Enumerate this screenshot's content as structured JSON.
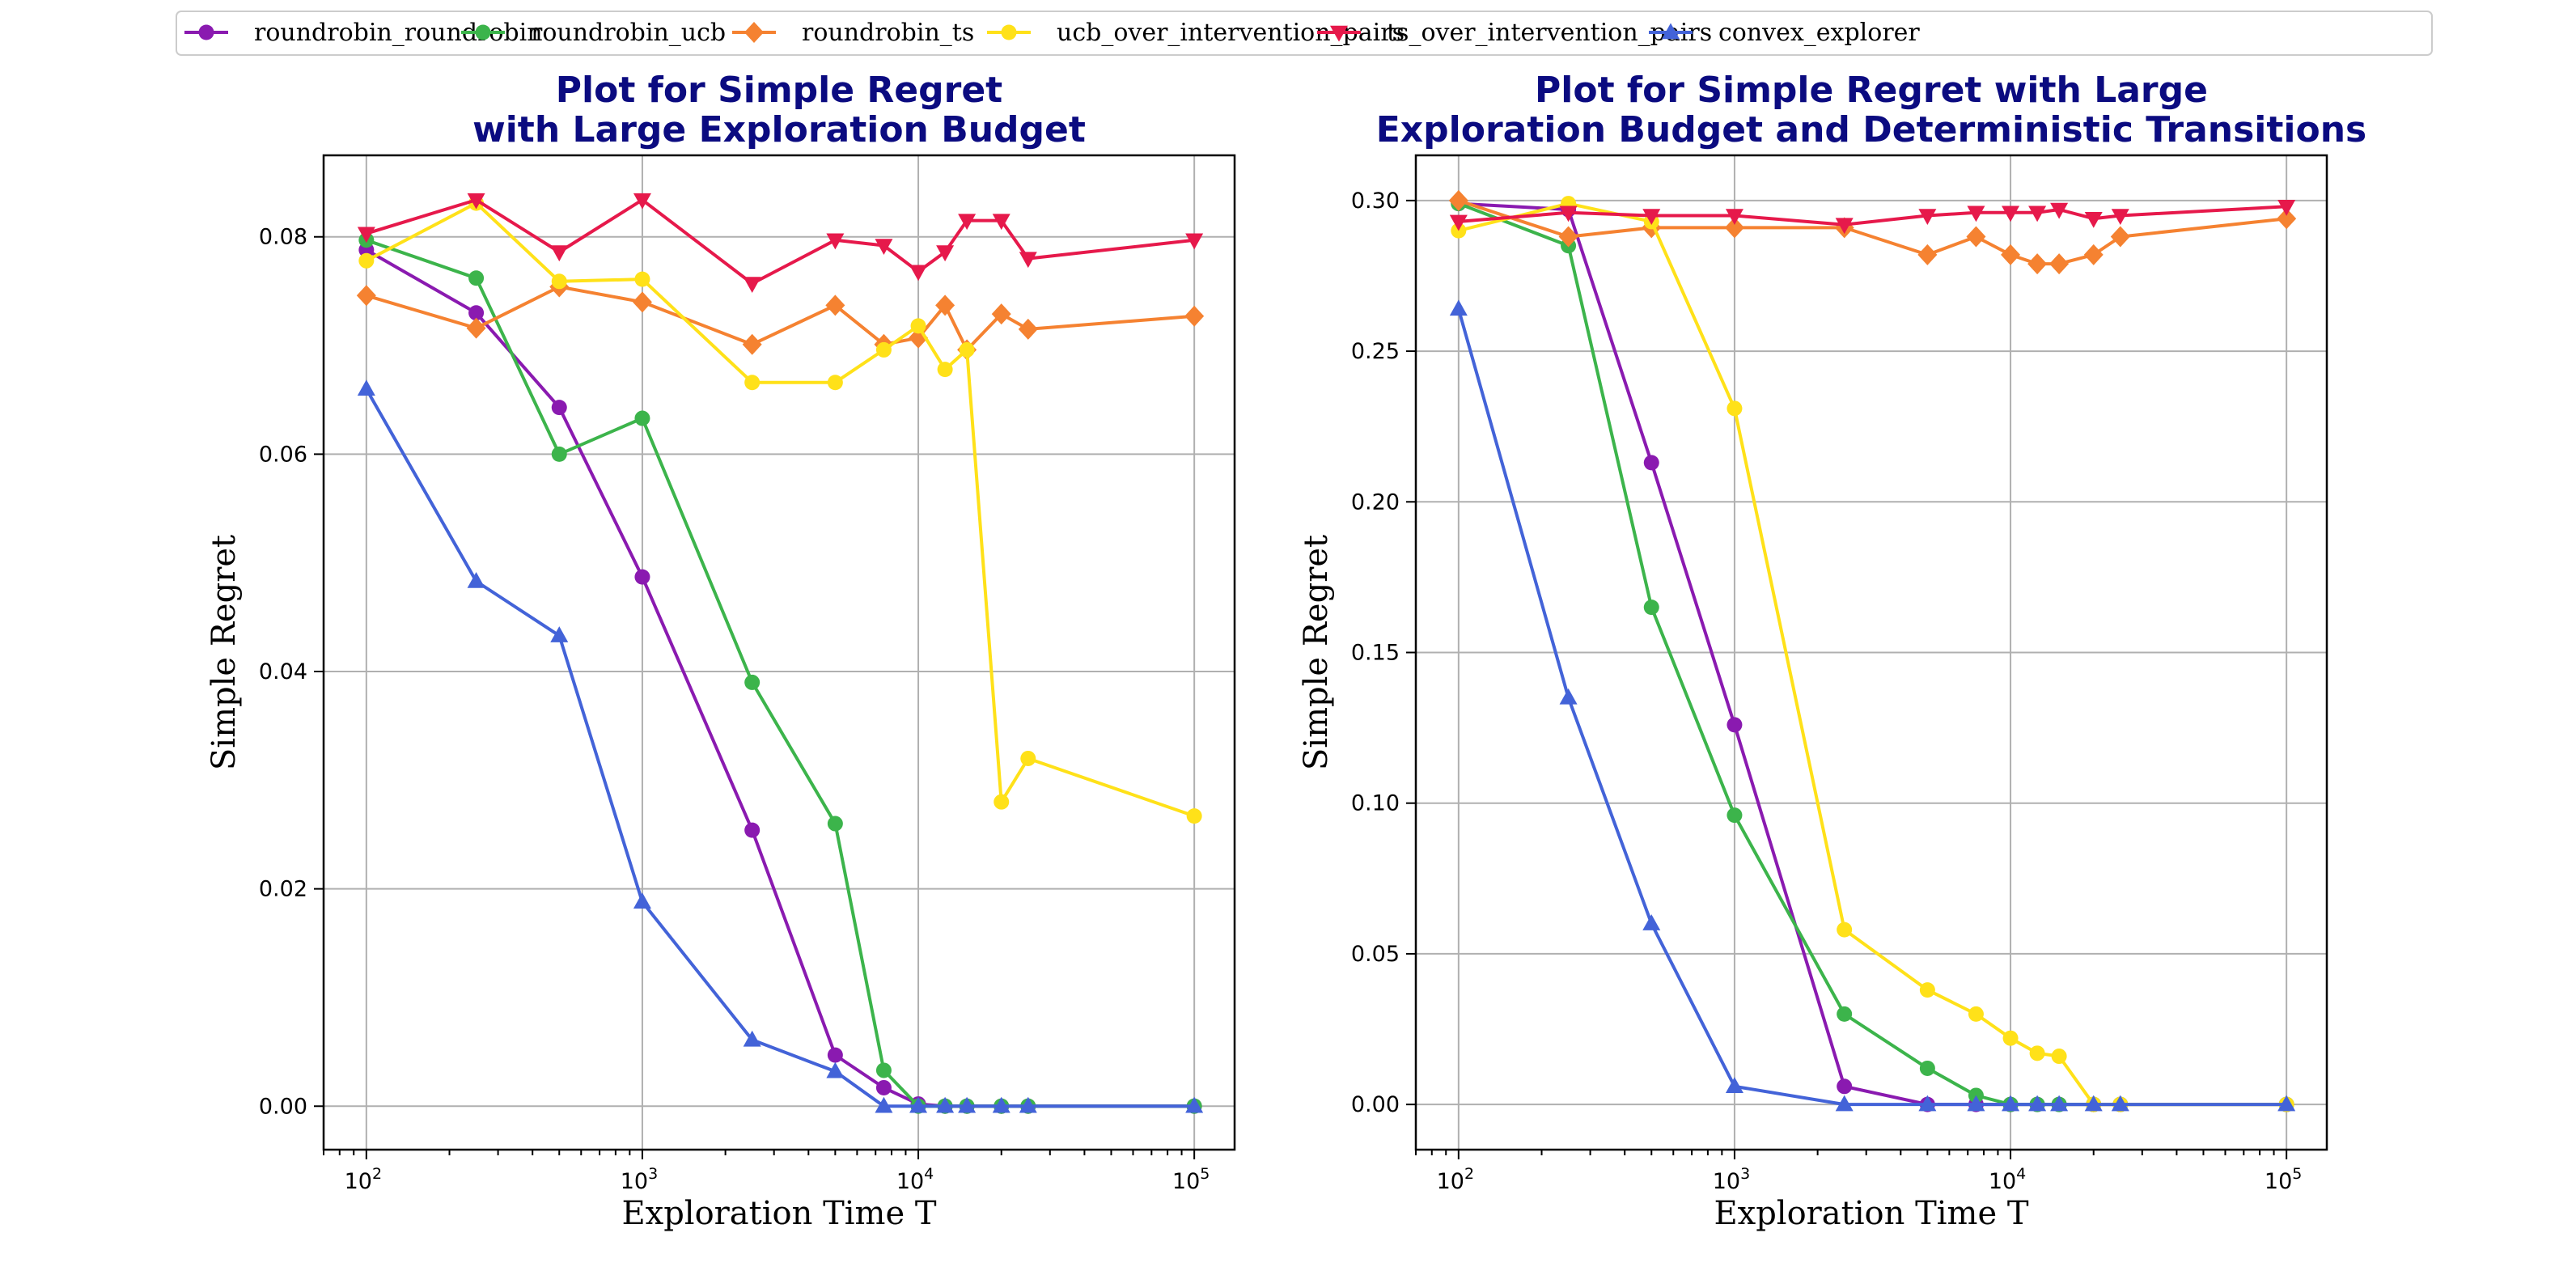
{
  "legend": [
    {
      "name": "roundrobin_roundrobin",
      "color": "#8a1ab0",
      "marker": "circle"
    },
    {
      "name": "roundrobin_ucb",
      "color": "#3cb44b",
      "marker": "circle"
    },
    {
      "name": "roundrobin_ts",
      "color": "#f58231",
      "marker": "diamond"
    },
    {
      "name": "ucb_over_intervention_pairs",
      "color": "#ffe119",
      "marker": "circle"
    },
    {
      "name": "ts_over_intervention_pairs",
      "color": "#e6194b",
      "marker": "triangle-down"
    },
    {
      "name": "convex_explorer",
      "color": "#4363d8",
      "marker": "triangle-up"
    }
  ],
  "chart_data": [
    {
      "type": "line",
      "title_lines": [
        "Plot for Simple Regret",
        "with Large Exploration Budget"
      ],
      "xlabel": "Exploration Time T",
      "ylabel": "Simple Regret",
      "xscale": "log",
      "xlim": [
        70,
        140000
      ],
      "ylim": [
        -0.004,
        0.0875
      ],
      "xticks": [
        {
          "base": "10",
          "exp": "2",
          "value": 100
        },
        {
          "base": "10",
          "exp": "3",
          "value": 1000
        },
        {
          "base": "10",
          "exp": "4",
          "value": 10000
        },
        {
          "base": "10",
          "exp": "5",
          "value": 100000
        }
      ],
      "yticks": [
        {
          "label": "0.00",
          "value": 0
        },
        {
          "label": "0.02",
          "value": 0.02
        },
        {
          "label": "0.04",
          "value": 0.04
        },
        {
          "label": "0.06",
          "value": 0.06
        },
        {
          "label": "0.08",
          "value": 0.08
        }
      ],
      "grid": true,
      "series": [
        {
          "name": "roundrobin_roundrobin",
          "x": [
            100,
            250,
            500,
            1000,
            2500,
            5000,
            7500,
            10000,
            12500,
            15000,
            20000,
            25000,
            100000
          ],
          "y": [
            0.0788,
            0.073,
            0.0643,
            0.0487,
            0.0254,
            0.0047,
            0.0017,
            0.0002,
            0.0,
            0.0,
            0.0,
            0.0,
            0.0
          ]
        },
        {
          "name": "roundrobin_ucb",
          "x": [
            100,
            250,
            500,
            1000,
            2500,
            5000,
            7500,
            10000,
            12500,
            15000,
            20000,
            25000,
            100000
          ],
          "y": [
            0.0797,
            0.0762,
            0.06,
            0.0633,
            0.039,
            0.026,
            0.0033,
            0.0,
            0.0,
            0.0,
            0.0,
            0.0,
            0.0
          ]
        },
        {
          "name": "roundrobin_ts",
          "x": [
            100,
            250,
            500,
            1000,
            2500,
            5000,
            7500,
            10000,
            12500,
            15000,
            20000,
            25000,
            100000
          ],
          "y": [
            0.0746,
            0.0716,
            0.0754,
            0.074,
            0.0701,
            0.0737,
            0.0701,
            0.0707,
            0.0737,
            0.0696,
            0.0729,
            0.0715,
            0.0727
          ]
        },
        {
          "name": "ucb_over_intervention_pairs",
          "x": [
            100,
            250,
            500,
            1000,
            2500,
            5000,
            7500,
            10000,
            12500,
            15000,
            20000,
            25000,
            100000
          ],
          "y": [
            0.0778,
            0.0831,
            0.0759,
            0.0761,
            0.0666,
            0.0666,
            0.0696,
            0.0718,
            0.0678,
            0.0696,
            0.028,
            0.032,
            0.0267
          ]
        },
        {
          "name": "ts_over_intervention_pairs",
          "x": [
            100,
            250,
            500,
            1000,
            2500,
            5000,
            7500,
            10000,
            12500,
            15000,
            20000,
            25000,
            100000
          ],
          "y": [
            0.0803,
            0.0834,
            0.0786,
            0.0834,
            0.0757,
            0.0797,
            0.0792,
            0.0768,
            0.0786,
            0.0815,
            0.0815,
            0.078,
            0.0797
          ]
        },
        {
          "name": "convex_explorer",
          "x": [
            100,
            250,
            500,
            1000,
            2500,
            5000,
            7500,
            10000,
            12500,
            15000,
            20000,
            25000,
            100000
          ],
          "y": [
            0.066,
            0.0483,
            0.0433,
            0.0188,
            0.0061,
            0.0032,
            0.0,
            0.0,
            0.0,
            0.0,
            0.0,
            0.0,
            0.0
          ]
        }
      ]
    },
    {
      "type": "line",
      "title_lines": [
        "Plot for Simple Regret with Large",
        "Exploration Budget and Deterministic Transitions"
      ],
      "xlabel": "Exploration Time T",
      "ylabel": "Simple Regret",
      "xscale": "log",
      "xlim": [
        70,
        140000
      ],
      "ylim": [
        -0.015,
        0.315
      ],
      "xticks": [
        {
          "base": "10",
          "exp": "2",
          "value": 100
        },
        {
          "base": "10",
          "exp": "3",
          "value": 1000
        },
        {
          "base": "10",
          "exp": "4",
          "value": 10000
        },
        {
          "base": "10",
          "exp": "5",
          "value": 100000
        }
      ],
      "yticks": [
        {
          "label": "0.00",
          "value": 0
        },
        {
          "label": "0.05",
          "value": 0.05
        },
        {
          "label": "0.10",
          "value": 0.1
        },
        {
          "label": "0.15",
          "value": 0.15
        },
        {
          "label": "0.20",
          "value": 0.2
        },
        {
          "label": "0.25",
          "value": 0.25
        },
        {
          "label": "0.30",
          "value": 0.3
        }
      ],
      "grid": true,
      "series": [
        {
          "name": "roundrobin_roundrobin",
          "x": [
            100,
            250,
            500,
            1000,
            2500,
            5000,
            7500,
            10000,
            12500,
            15000,
            20000,
            25000,
            100000
          ],
          "y": [
            0.299,
            0.297,
            0.213,
            0.126,
            0.006,
            0.0,
            0.0,
            0.0,
            0.0,
            0.0,
            0.0,
            0.0,
            0.0
          ]
        },
        {
          "name": "roundrobin_ucb",
          "x": [
            100,
            250,
            500,
            1000,
            2500,
            5000,
            7500,
            10000,
            12500,
            15000,
            20000,
            25000,
            100000
          ],
          "y": [
            0.299,
            0.285,
            0.165,
            0.096,
            0.03,
            0.012,
            0.003,
            0.0,
            0.0,
            0.0,
            0.0,
            0.0,
            0.0
          ]
        },
        {
          "name": "roundrobin_ts",
          "x": [
            100,
            250,
            500,
            1000,
            2500,
            5000,
            7500,
            10000,
            12500,
            15000,
            20000,
            25000,
            100000
          ],
          "y": [
            0.3,
            0.288,
            0.291,
            0.291,
            0.291,
            0.282,
            0.288,
            0.282,
            0.279,
            0.279,
            0.282,
            0.288,
            0.294
          ]
        },
        {
          "name": "ucb_over_intervention_pairs",
          "x": [
            100,
            250,
            500,
            1000,
            2500,
            5000,
            7500,
            10000,
            12500,
            15000,
            20000,
            25000,
            100000
          ],
          "y": [
            0.29,
            0.299,
            0.293,
            0.231,
            0.058,
            0.038,
            0.03,
            0.022,
            0.017,
            0.016,
            0.0,
            0.0,
            0.0
          ]
        },
        {
          "name": "ts_over_intervention_pairs",
          "x": [
            100,
            250,
            500,
            1000,
            2500,
            5000,
            7500,
            10000,
            12500,
            15000,
            20000,
            25000,
            100000
          ],
          "y": [
            0.293,
            0.296,
            0.295,
            0.295,
            0.292,
            0.295,
            0.296,
            0.296,
            0.296,
            0.297,
            0.294,
            0.295,
            0.298
          ]
        },
        {
          "name": "convex_explorer",
          "x": [
            100,
            250,
            500,
            1000,
            2500,
            5000,
            7500,
            10000,
            12500,
            15000,
            20000,
            25000,
            100000
          ],
          "y": [
            0.264,
            0.135,
            0.06,
            0.006,
            0.0,
            0.0,
            0.0,
            0.0,
            0.0,
            0.0,
            0.0,
            0.0,
            0.0
          ]
        }
      ]
    }
  ]
}
